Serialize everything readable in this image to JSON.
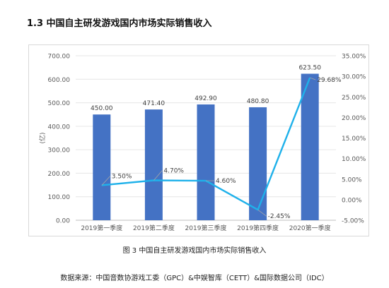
{
  "section": {
    "title": "1.3  中国自主研发游戏国内市场实际销售收入"
  },
  "caption": "图 3  中国自主研发游戏国内市场实际销售收入",
  "source": "数据来源：中国音数协游戏工委（GPC）&中娱智库（CETT）&国际数据公司（IDC）",
  "colors": {
    "bar": "#4472c4",
    "line": "#1fb1ea",
    "grid": "#e6e6e6",
    "axis_text": "#595959",
    "label_text": "#404040"
  },
  "chart_data": {
    "type": "bar",
    "categories": [
      "2019第一季度",
      "2019第二季度",
      "2019第三季度",
      "2019第四季度",
      "2020第一季度"
    ],
    "ylabel": "(亿)",
    "ylim": [
      0,
      700
    ],
    "y_ticks": [
      "0.00",
      "100.00",
      "200.00",
      "300.00",
      "400.00",
      "500.00",
      "600.00",
      "700.00"
    ],
    "y2lim": [
      -5,
      35
    ],
    "y2_ticks": [
      "-5.00%",
      "0.00%",
      "5.00%",
      "10.00%",
      "15.00%",
      "20.00%",
      "25.00%",
      "30.00%",
      "35.00%"
    ],
    "grid": true,
    "series": [
      {
        "kind": "bar",
        "axis": "left",
        "values": [
          450.0,
          471.4,
          492.9,
          480.8,
          623.5
        ],
        "labels": [
          "450.00",
          "471.40",
          "492.90",
          "480.80",
          "623.50"
        ]
      },
      {
        "kind": "line",
        "axis": "right",
        "values": [
          3.5,
          4.7,
          4.6,
          -2.45,
          29.68
        ],
        "labels": [
          "3.50%",
          "4.70%",
          "4.60%",
          "-2.45%",
          "29.68%"
        ]
      }
    ]
  }
}
